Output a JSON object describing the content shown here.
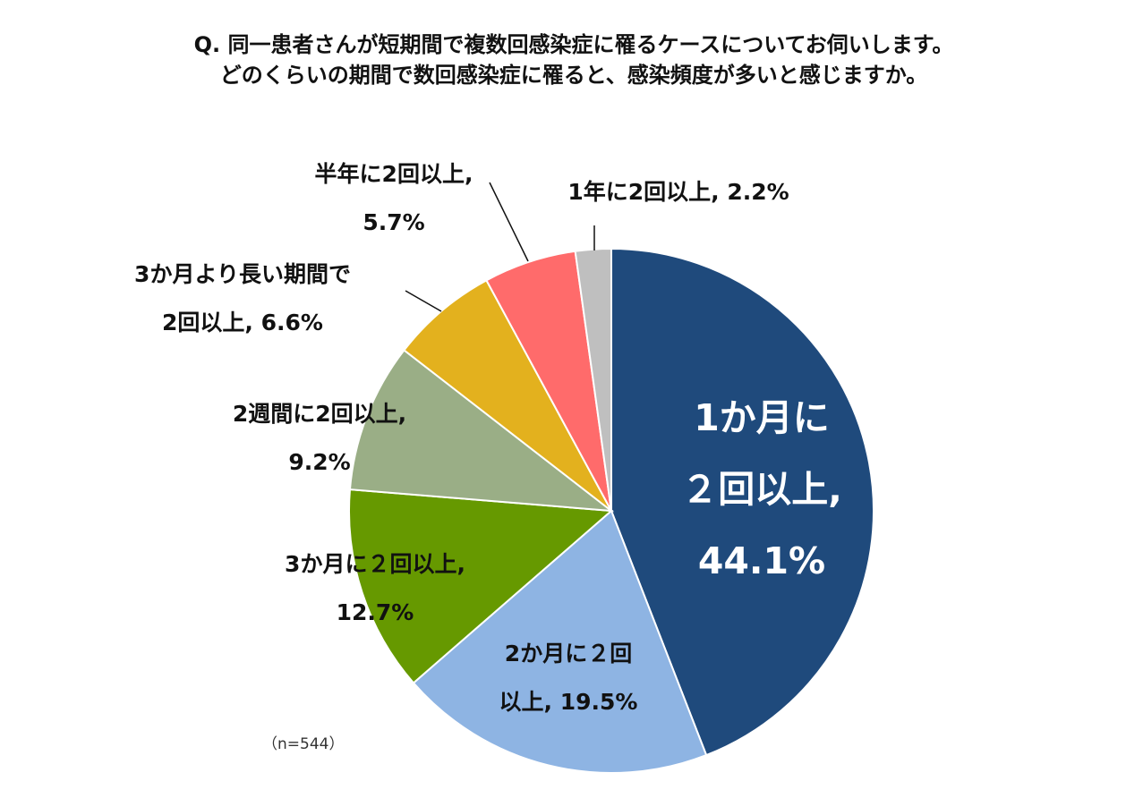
{
  "question": {
    "line1": "Q. 同一患者さんが短期間で複数回感染症に罹るケースについてお伺いします。",
    "line2": "どのくらいの期間で数回感染症に罹ると、感染頻度が多いと感じますか。"
  },
  "sample_size": "（n=544）",
  "chart_data": {
    "type": "pie",
    "start_angle_deg": 0,
    "direction": "clockwise",
    "slices": [
      {
        "label_lines": [
          "1か月に",
          "２回以上,",
          "44.1%"
        ],
        "value": 44.1,
        "color": "#1F4A7C"
      },
      {
        "label_lines": [
          "2か月に２回",
          "以上, 19.5%"
        ],
        "value": 19.5,
        "color": "#8EB4E3"
      },
      {
        "label_lines": [
          "3か月に２回以上,",
          "12.7%"
        ],
        "value": 12.7,
        "color": "#669900"
      },
      {
        "label_lines": [
          "2週間に2回以上,",
          "9.2%"
        ],
        "value": 9.2,
        "color": "#9AAE86"
      },
      {
        "label_lines": [
          "3か月より長い期間で",
          "2回以上, 6.6%"
        ],
        "value": 6.6,
        "color": "#E3B11E"
      },
      {
        "label_lines": [
          "半年に2回以上,",
          "5.7%"
        ],
        "value": 5.7,
        "color": "#FF6B6B"
      },
      {
        "label_lines": [
          "1年に2回以上, 2.2%"
        ],
        "value": 2.2,
        "color": "#BFBFBF"
      }
    ]
  }
}
